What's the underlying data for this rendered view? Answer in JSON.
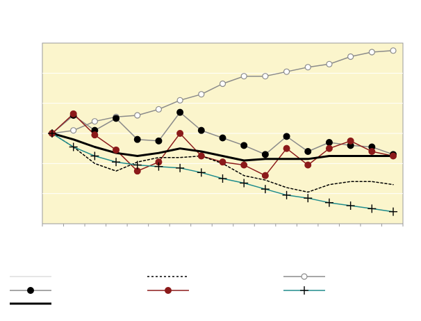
{
  "chart_data": {
    "type": "line",
    "title": "",
    "xlabel": "",
    "ylabel": "",
    "x": [
      1,
      2,
      3,
      4,
      5,
      6,
      7,
      8,
      9,
      10,
      11,
      12,
      13,
      14,
      15,
      16,
      17
    ],
    "ylim": [
      0,
      6
    ],
    "grid": true,
    "grid_color": "#ffffff",
    "plot_background": "#fbf5cc",
    "legend": "bottom",
    "series": [
      {
        "key": "grey-open-circles",
        "color": "#8a8a8a",
        "stroke": "solid",
        "marker": "open-circle",
        "lw": 1.5,
        "values": [
          3.0,
          3.1,
          3.4,
          3.55,
          3.6,
          3.8,
          4.1,
          4.3,
          4.65,
          4.9,
          4.9,
          5.05,
          5.2,
          5.3,
          5.55,
          5.7,
          5.75
        ]
      },
      {
        "key": "black-filled-circles",
        "color": "#8a8a8a",
        "stroke": "solid",
        "marker": "filled-circle-black",
        "lw": 1.5,
        "values": [
          3.0,
          3.6,
          3.1,
          3.5,
          2.8,
          2.75,
          3.7,
          3.1,
          2.85,
          2.6,
          2.3,
          2.9,
          2.4,
          2.7,
          2.6,
          2.55,
          2.3
        ]
      },
      {
        "key": "red-filled-circles",
        "color": "#8b1a1a",
        "stroke": "solid",
        "marker": "filled-circle-red",
        "lw": 1.5,
        "values": [
          3.0,
          3.65,
          2.95,
          2.45,
          1.75,
          2.05,
          3.0,
          2.25,
          2.05,
          1.95,
          1.6,
          2.5,
          1.95,
          2.5,
          2.75,
          2.4,
          2.25
        ]
      },
      {
        "key": "black-thick",
        "color": "#000000",
        "stroke": "solid",
        "marker": "none",
        "lw": 3,
        "values": [
          3.0,
          2.8,
          2.55,
          2.35,
          2.25,
          2.35,
          2.5,
          2.4,
          2.25,
          2.1,
          2.15,
          2.15,
          2.15,
          2.25,
          2.25,
          2.25,
          2.25
        ]
      },
      {
        "key": "black-dotted",
        "color": "#000000",
        "stroke": "dotted",
        "marker": "none",
        "lw": 1.5,
        "values": [
          3.0,
          2.55,
          2.0,
          1.75,
          2.05,
          2.2,
          2.2,
          2.25,
          2.0,
          1.6,
          1.45,
          1.2,
          1.05,
          1.3,
          1.4,
          1.4,
          1.3
        ]
      },
      {
        "key": "teal-plus",
        "color": "#1e8c8c",
        "stroke": "solid",
        "marker": "plus",
        "lw": 1.5,
        "values": [
          3.0,
          2.55,
          2.25,
          2.05,
          1.95,
          1.9,
          1.85,
          1.7,
          1.5,
          1.35,
          1.15,
          0.95,
          0.85,
          0.7,
          0.6,
          0.5,
          0.4
        ]
      }
    ],
    "legend_entries": [
      {
        "series": "thin-grey-line",
        "color": "#cccccc",
        "stroke": "solid",
        "marker": "none",
        "col": 0,
        "row": 0
      },
      {
        "series": "black-dotted",
        "color": "#000000",
        "stroke": "dotted",
        "marker": "none",
        "col": 1,
        "row": 0
      },
      {
        "series": "grey-open-circles",
        "color": "#8a8a8a",
        "stroke": "solid",
        "marker": "open-circle",
        "col": 2,
        "row": 0
      },
      {
        "series": "black-filled-circles",
        "color": "#8a8a8a",
        "stroke": "solid",
        "marker": "filled-circle-black",
        "col": 0,
        "row": 1
      },
      {
        "series": "red-filled-circles",
        "color": "#8b1a1a",
        "stroke": "solid",
        "marker": "filled-circle-red",
        "col": 1,
        "row": 1
      },
      {
        "series": "teal-plus",
        "color": "#1e8c8c",
        "stroke": "solid",
        "marker": "plus",
        "col": 2,
        "row": 1
      },
      {
        "series": "black-thick",
        "color": "#000000",
        "stroke": "solid",
        "marker": "none",
        "col": 0,
        "row": 2
      }
    ]
  }
}
